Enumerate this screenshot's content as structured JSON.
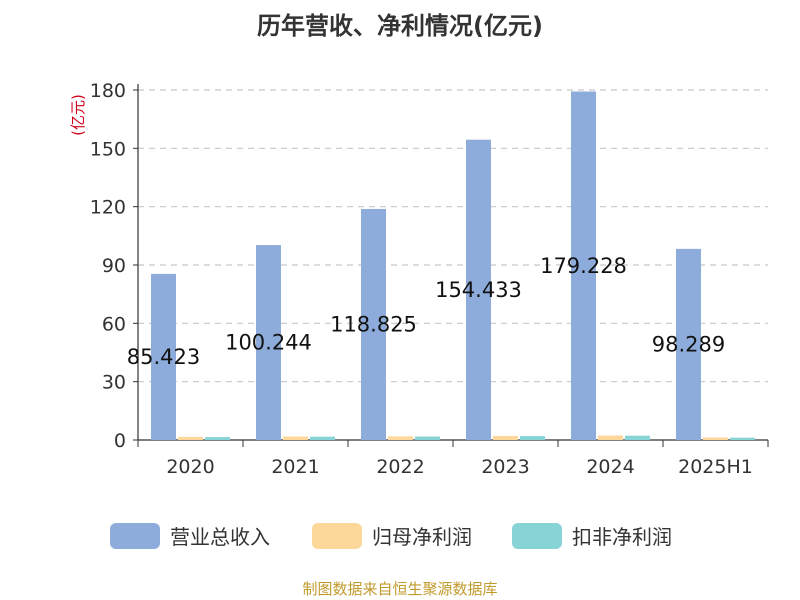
{
  "chart_data": {
    "type": "bar",
    "title": "历年营收、净利情况(亿元)",
    "unit_label": "(亿元)",
    "categories": [
      "2020",
      "2021",
      "2022",
      "2023",
      "2024",
      "2025H1"
    ],
    "ylim": [
      0,
      180
    ],
    "yticks": [
      0,
      30,
      60,
      90,
      120,
      150,
      180
    ],
    "grid": true,
    "legend_position": "bottom",
    "series": [
      {
        "name": "营业总收入",
        "color": "#8dacdb",
        "values": [
          85.423,
          100.244,
          118.825,
          154.433,
          179.228,
          98.289
        ],
        "labels": [
          "85.423",
          "100.244",
          "118.825",
          "154.433",
          "179.228",
          "98.289"
        ]
      },
      {
        "name": "归母净利润",
        "color": "#fdd89a",
        "values": [
          1.6,
          1.8,
          1.9,
          2.1,
          2.3,
          1.3
        ]
      },
      {
        "name": "扣非净利润",
        "color": "#86d4d6",
        "values": [
          1.5,
          1.7,
          1.8,
          2.0,
          2.2,
          1.2
        ]
      }
    ],
    "source": "制图数据来自恒生聚源数据库",
    "unit_color": "#d0021b",
    "source_color": "#c09a2a"
  }
}
